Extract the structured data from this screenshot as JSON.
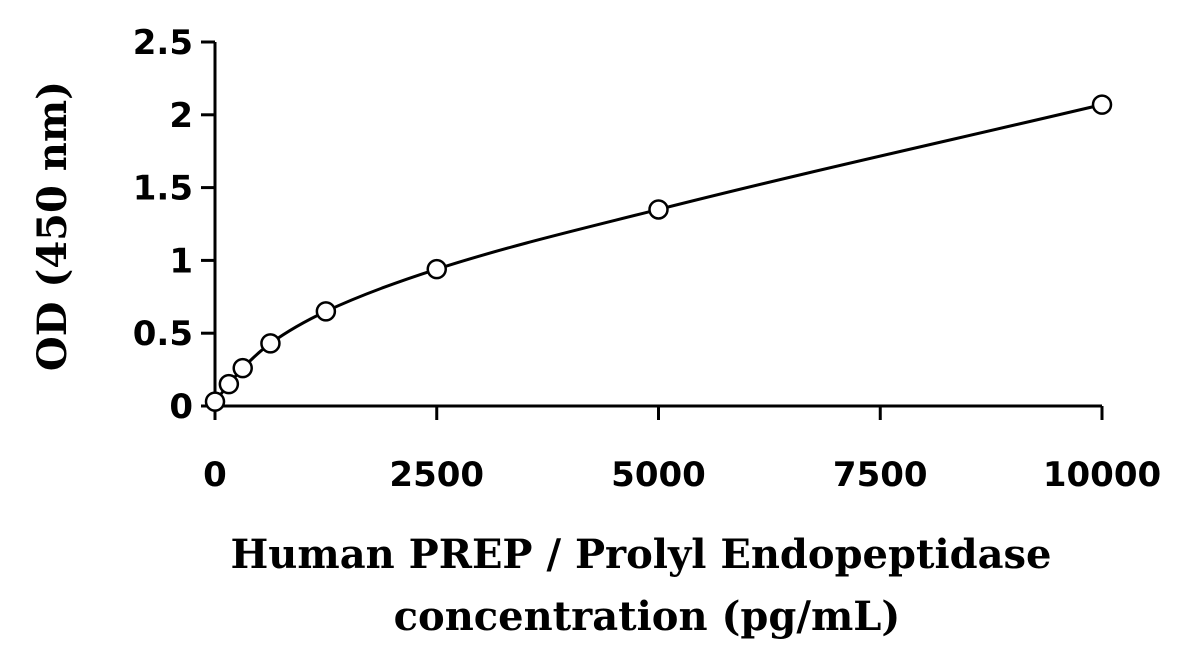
{
  "chart_data": {
    "type": "scatter",
    "title": "",
    "xlabel": [
      "Human PREP / Prolyl Endopeptidase",
      "concentration (pg/mL)"
    ],
    "ylabel": "OD (450 nm)",
    "xlim": [
      0,
      10000
    ],
    "ylim": [
      0,
      2.5
    ],
    "x_ticks": [
      0,
      2500,
      5000,
      7500,
      10000
    ],
    "y_ticks": [
      0,
      0.5,
      1,
      1.5,
      2,
      2.5
    ],
    "grid": false,
    "legend": "none",
    "series": [
      {
        "x": [
          0,
          156.25,
          312.5,
          625,
          1250,
          2500,
          5000,
          10000
        ],
        "y": [
          0.03,
          0.15,
          0.26,
          0.43,
          0.65,
          0.94,
          1.35,
          2.07
        ]
      }
    ],
    "colors": {
      "line": "#000000",
      "marker_fill": "#ffffff",
      "marker_stroke": "#000000"
    }
  }
}
